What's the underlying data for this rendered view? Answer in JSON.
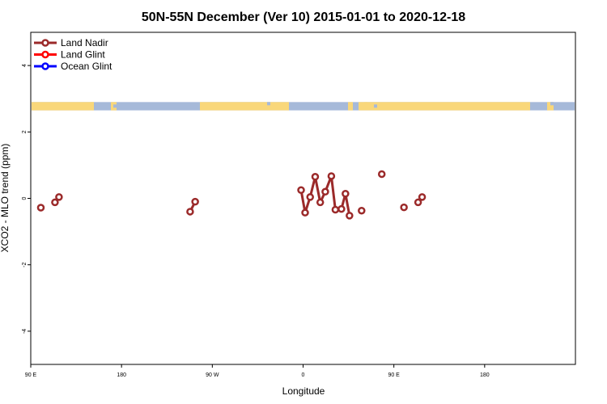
{
  "chart_data": {
    "type": "line",
    "title": "50N-55N December (Ver 10)   2015-01-01 to 2020-12-18",
    "xlabel": "Longitude",
    "ylabel": "XCO2 - MLO trend (ppm)",
    "xlim": [
      -90,
      180
    ],
    "ylim": [
      -5,
      5
    ],
    "x_ticks": [
      {
        "value": -90,
        "label": "90 E"
      },
      {
        "value": -45,
        "label": "180"
      },
      {
        "value": 0,
        "label": "90 W"
      },
      {
        "value": 45,
        "label": "0"
      },
      {
        "value": 90,
        "label": "90 E"
      },
      {
        "value": 135,
        "label": "180"
      }
    ],
    "y_ticks": [
      {
        "value": -4,
        "label": "-4"
      },
      {
        "value": -2,
        "label": "-2"
      },
      {
        "value": 0,
        "label": "0"
      },
      {
        "value": 2,
        "label": "2"
      },
      {
        "value": 4,
        "label": "4"
      }
    ],
    "grid": false,
    "legend_position": "top-left",
    "map_strip": {
      "y_range": [
        2.65,
        2.9
      ],
      "ocean_color": "#a6b9d9",
      "land_color": "#f9d77a"
    },
    "series": [
      {
        "name": "Land Nadir",
        "color": "#9b2a2a",
        "points": [
          {
            "x": -85,
            "y": -0.28
          },
          {
            "x": -78,
            "y": -0.12
          },
          {
            "x": -76,
            "y": 0.04
          },
          {
            "x": -11,
            "y": -0.4
          },
          {
            "x": -8.5,
            "y": -0.1
          },
          {
            "x": 44,
            "y": 0.25
          },
          {
            "x": 46,
            "y": -0.43
          },
          {
            "x": 48.5,
            "y": 0.04
          },
          {
            "x": 51,
            "y": 0.65
          },
          {
            "x": 53.5,
            "y": -0.12
          },
          {
            "x": 56,
            "y": 0.2
          },
          {
            "x": 59,
            "y": 0.67
          },
          {
            "x": 61,
            "y": -0.34
          },
          {
            "x": 64,
            "y": -0.32
          },
          {
            "x": 66,
            "y": 0.14
          },
          {
            "x": 68,
            "y": -0.52
          },
          {
            "x": 74,
            "y": -0.37
          },
          {
            "x": 84,
            "y": 0.73
          },
          {
            "x": 95,
            "y": -0.27
          },
          {
            "x": 102,
            "y": -0.12
          },
          {
            "x": 104,
            "y": 0.04
          }
        ],
        "segments": [
          [
            0
          ],
          [
            1,
            2
          ],
          [
            3,
            4
          ],
          [
            5,
            6,
            7,
            8,
            9,
            10,
            11,
            12,
            13,
            14,
            15
          ],
          [
            16
          ],
          [
            17
          ],
          [
            18
          ],
          [
            19,
            20
          ]
        ]
      },
      {
        "name": "Land Glint",
        "color": "#ff0000",
        "points": [],
        "segments": []
      },
      {
        "name": "Ocean Glint",
        "color": "#0000ff",
        "points": [],
        "segments": []
      }
    ]
  }
}
